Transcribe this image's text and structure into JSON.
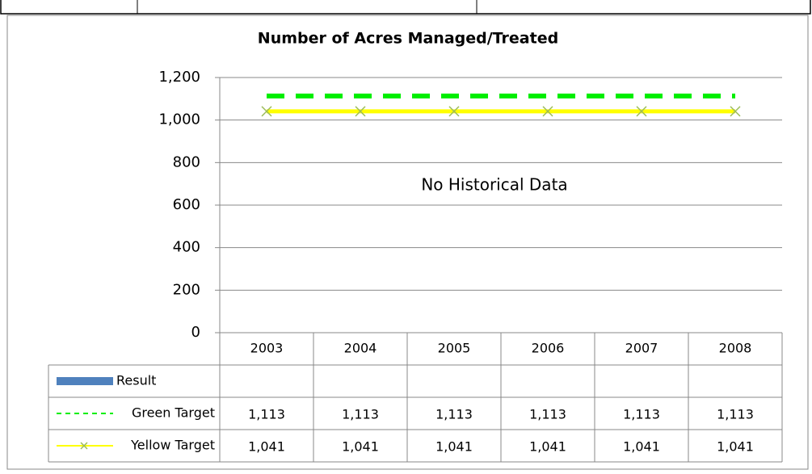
{
  "chart_data": {
    "type": "line",
    "title": "Number of Acres Managed/Treated",
    "annotation": "No Historical Data",
    "categories": [
      "2003",
      "2004",
      "2005",
      "2006",
      "2007",
      "2008"
    ],
    "series": [
      {
        "name": "Result",
        "color": "#4f81bd",
        "values": [
          null,
          null,
          null,
          null,
          null,
          null
        ]
      },
      {
        "name": "Green Target",
        "color": "#00ee00",
        "dashed": true,
        "values": [
          1113,
          1113,
          1113,
          1113,
          1113,
          1113
        ],
        "value_labels": [
          "1,113",
          "1,113",
          "1,113",
          "1,113",
          "1,113",
          "1,113"
        ]
      },
      {
        "name": "Yellow Target",
        "color": "#ffff00",
        "marker": "x",
        "marker_color": "#9bbb59",
        "values": [
          1041,
          1041,
          1041,
          1041,
          1041,
          1041
        ],
        "value_labels": [
          "1,041",
          "1,041",
          "1,041",
          "1,041",
          "1,041",
          "1,041"
        ]
      }
    ],
    "ylim": [
      0,
      1200
    ],
    "yticks": [
      0,
      200,
      400,
      600,
      800,
      {
        "value": 1000,
        "label": "1,000"
      },
      {
        "value": 1200,
        "label": "1,200"
      }
    ],
    "grid": true
  }
}
